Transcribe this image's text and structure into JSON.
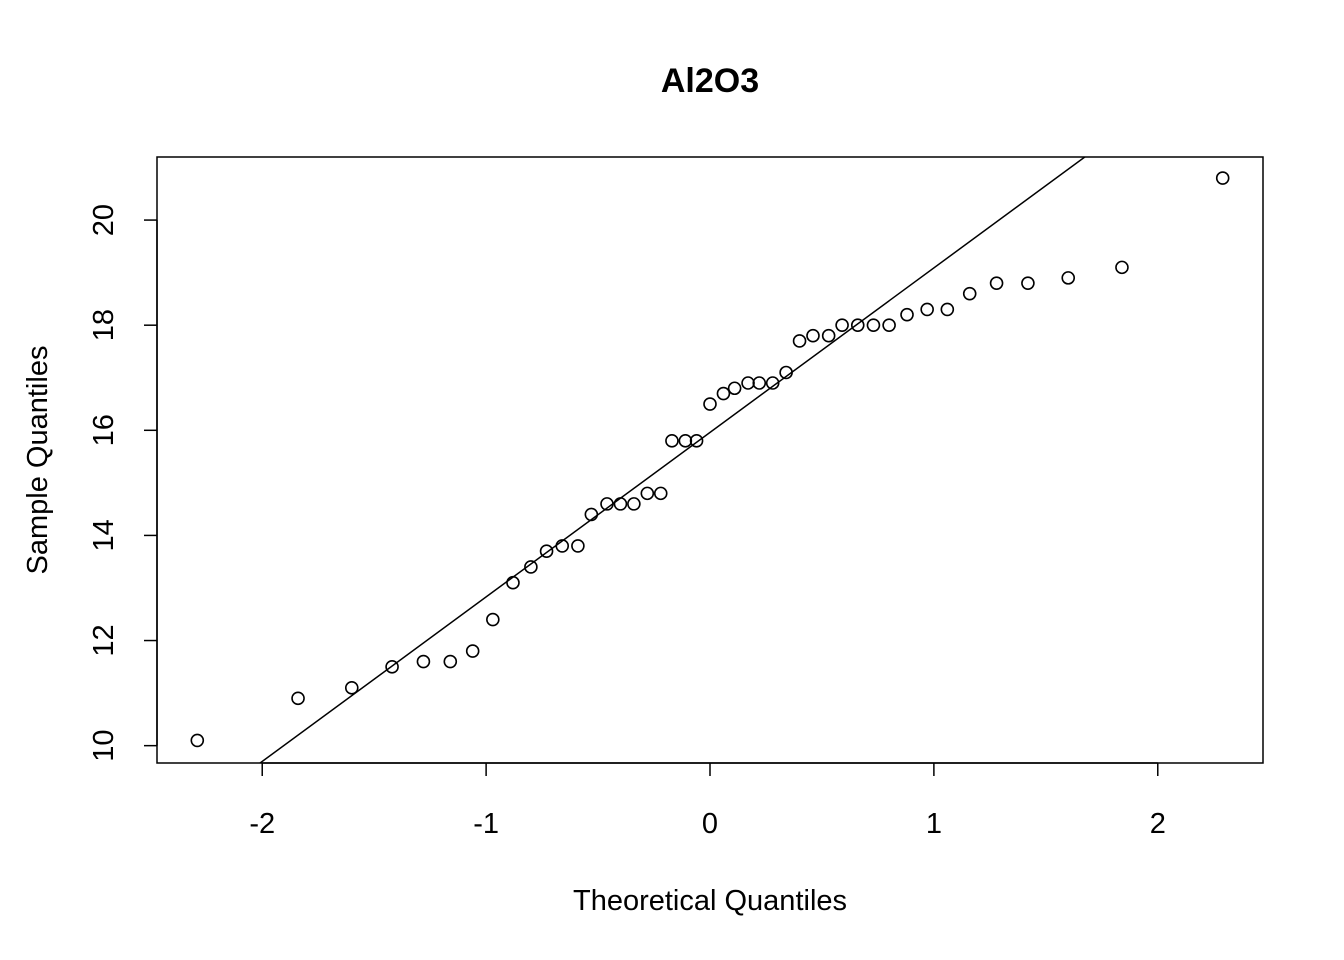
{
  "chart_data": {
    "type": "scatter",
    "title": "Al2O3",
    "xlabel": "Theoretical Quantiles",
    "ylabel": "Sample Quantiles",
    "xlim": [
      -2.47,
      2.47
    ],
    "ylim": [
      9.67,
      21.2
    ],
    "x_ticks": [
      -2,
      -1,
      0,
      1,
      2
    ],
    "y_ticks": [
      10,
      12,
      14,
      16,
      18,
      20
    ],
    "grid": false,
    "legend": "none",
    "colors": {
      "points": "#000000",
      "line": "#000000",
      "frame": "#000000"
    },
    "points": {
      "x": [
        -2.29,
        -1.84,
        -1.6,
        -1.42,
        -1.28,
        -1.16,
        -1.06,
        -0.97,
        -0.88,
        -0.8,
        -0.73,
        -0.66,
        -0.59,
        -0.53,
        -0.46,
        -0.4,
        -0.34,
        -0.28,
        -0.22,
        -0.17,
        -0.11,
        -0.06,
        0.0,
        0.06,
        0.11,
        0.17,
        0.22,
        0.28,
        0.34,
        0.4,
        0.46,
        0.53,
        0.59,
        0.66,
        0.73,
        0.8,
        0.88,
        0.97,
        1.06,
        1.16,
        1.28,
        1.42,
        1.6,
        1.84,
        2.29
      ],
      "y": [
        10.1,
        10.9,
        11.1,
        11.5,
        11.6,
        11.6,
        11.8,
        12.4,
        13.1,
        13.4,
        13.7,
        13.8,
        13.8,
        14.4,
        14.6,
        14.6,
        14.6,
        14.8,
        14.8,
        15.8,
        15.8,
        15.8,
        16.5,
        16.7,
        16.8,
        16.9,
        16.9,
        16.9,
        17.1,
        17.7,
        17.8,
        17.8,
        18.0,
        18.0,
        18.0,
        18.0,
        18.2,
        18.3,
        18.3,
        18.6,
        18.8,
        18.8,
        18.9,
        19.1,
        20.8
      ]
    },
    "reference_line": {
      "intercept": 15.96,
      "slope": 3.13
    }
  }
}
